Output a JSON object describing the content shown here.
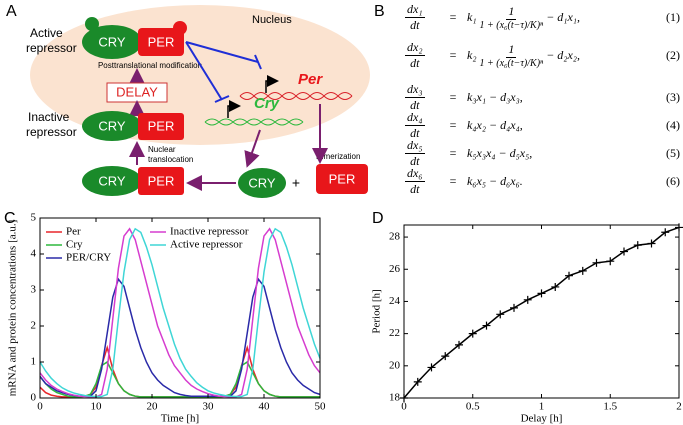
{
  "panel_labels": [
    "A",
    "B",
    "C",
    "D"
  ],
  "diagram": {
    "nucleus": "Nucleus",
    "active_label": [
      "Active",
      "repressor"
    ],
    "inactive_label": [
      "Inactive",
      "repressor"
    ],
    "ptm": "Posttranslational modification",
    "delay": "DELAY",
    "translocation": [
      "Nuclear",
      "translocation"
    ],
    "dimerization": "Dimerization",
    "plus": "+",
    "per_gene": "Per",
    "cry_gene": "Cry",
    "active": {
      "cry": "CRY",
      "per": "PER"
    },
    "inactive": {
      "cry": "CRY",
      "per": "PER"
    },
    "cytoplasm_complex": {
      "cry": "CRY",
      "per": "PER"
    },
    "free_cry": "CRY",
    "free_per": "PER"
  },
  "equations": [
    {
      "num": "dx₁",
      "den": "dt",
      "eq": "=",
      "coef": "k₁",
      "frac_num": "1",
      "frac_den": "1 + (x₆(t−τ)/K)ⁿ",
      "rest": "− d₁x₁,",
      "tag": "(1)"
    },
    {
      "num": "dx₂",
      "den": "dt",
      "eq": "=",
      "coef": "k₂",
      "frac_num": "1",
      "frac_den": "1 + (x₆(t−τ)/K)ⁿ",
      "rest": "− d₂x₂,",
      "tag": "(2)"
    },
    {
      "num": "dx₃",
      "den": "dt",
      "eq": "=",
      "rhs": "k₃x₁ − d₃x₃,",
      "tag": "(3)"
    },
    {
      "num": "dx₄",
      "den": "dt",
      "eq": "=",
      "rhs": "k₄x₂ − d₄x₄,",
      "tag": "(4)"
    },
    {
      "num": "dx₅",
      "den": "dt",
      "eq": "=",
      "rhs": "k₅x₃x₄ − d₅x₅,",
      "tag": "(5)"
    },
    {
      "num": "dx₆",
      "den": "dt",
      "eq": "=",
      "rhs": "k₆x₅ − d₆x₆.",
      "tag": "(6)"
    }
  ],
  "chart_data": [
    {
      "type": "line",
      "x_label": "Time [h]",
      "y_label": "mRNA and protein concentrations [a.u.]",
      "xlim": [
        0,
        50
      ],
      "ylim": [
        0,
        5
      ],
      "xticks": [
        0,
        10,
        20,
        30,
        40,
        50
      ],
      "yticks": [
        0,
        1,
        2,
        3,
        4,
        5
      ],
      "x": [
        0,
        1,
        2,
        3,
        4,
        5,
        6,
        7,
        8,
        9,
        10,
        11,
        12,
        13,
        14,
        15,
        16,
        17,
        18,
        19,
        20,
        21,
        22,
        23,
        24,
        25,
        26,
        27,
        28,
        29,
        30,
        31,
        32,
        33,
        34,
        35,
        36,
        37,
        38,
        39,
        40,
        41,
        42,
        43,
        44,
        45,
        46,
        47,
        48,
        49,
        50
      ],
      "series": [
        {
          "name": "Per",
          "color": "#e8262a",
          "values": [
            0.3,
            0.15,
            0.08,
            0.05,
            0.03,
            0.03,
            0.03,
            0.03,
            0.05,
            0.1,
            0.3,
            0.9,
            1.4,
            0.8,
            0.4,
            0.2,
            0.1,
            0.05,
            0.03,
            0.03,
            0.03,
            0.03,
            0.03,
            0.03,
            0.03,
            0.03,
            0.03,
            0.03,
            0.03,
            0.03,
            0.03,
            0.03,
            0.03,
            0.05,
            0.1,
            0.3,
            0.9,
            1.4,
            0.8,
            0.4,
            0.2,
            0.1,
            0.05,
            0.03,
            0.03,
            0.03,
            0.03,
            0.03,
            0.03,
            0.03,
            0.03
          ]
        },
        {
          "name": "Cry",
          "color": "#2db83d",
          "values": [
            0.6,
            0.4,
            0.25,
            0.15,
            0.1,
            0.05,
            0.03,
            0.03,
            0.05,
            0.1,
            0.4,
            0.9,
            1.0,
            0.7,
            0.4,
            0.2,
            0.1,
            0.05,
            0.03,
            0.03,
            0.03,
            0.03,
            0.03,
            0.03,
            0.03,
            0.03,
            0.03,
            0.03,
            0.03,
            0.03,
            0.03,
            0.03,
            0.03,
            0.05,
            0.1,
            0.4,
            0.9,
            1.0,
            0.7,
            0.4,
            0.2,
            0.1,
            0.05,
            0.03,
            0.03,
            0.03,
            0.03,
            0.03,
            0.03,
            0.03,
            0.03
          ]
        },
        {
          "name": "PER/CRY",
          "color": "#2a2aa8",
          "values": [
            0.6,
            0.4,
            0.3,
            0.2,
            0.15,
            0.1,
            0.07,
            0.05,
            0.05,
            0.05,
            0.2,
            0.8,
            1.8,
            2.8,
            3.3,
            3.1,
            2.5,
            1.9,
            1.4,
            1.0,
            0.7,
            0.5,
            0.35,
            0.25,
            0.15,
            0.1,
            0.07,
            0.05,
            0.05,
            0.05,
            0.05,
            0.05,
            0.05,
            0.05,
            0.05,
            0.2,
            0.8,
            1.8,
            2.8,
            3.3,
            3.1,
            2.5,
            1.9,
            1.4,
            1.0,
            0.7,
            0.5,
            0.35,
            0.25,
            0.15,
            0.1
          ]
        },
        {
          "name": "Inactive repressor",
          "color": "#d63ccf",
          "values": [
            0.7,
            0.5,
            0.35,
            0.25,
            0.18,
            0.12,
            0.08,
            0.05,
            0.04,
            0.03,
            0.03,
            0.1,
            0.8,
            2.2,
            3.6,
            4.5,
            4.7,
            4.4,
            3.8,
            3.2,
            2.6,
            2.0,
            1.6,
            1.2,
            0.9,
            0.7,
            0.5,
            0.35,
            0.25,
            0.18,
            0.12,
            0.08,
            0.05,
            0.04,
            0.03,
            0.03,
            0.1,
            0.8,
            2.2,
            3.6,
            4.5,
            4.7,
            4.4,
            3.8,
            3.2,
            2.6,
            2.0,
            1.6,
            1.2,
            0.9,
            0.7
          ]
        },
        {
          "name": "Active repressor",
          "color": "#3fd6d6",
          "values": [
            1.0,
            0.75,
            0.55,
            0.4,
            0.28,
            0.2,
            0.14,
            0.1,
            0.07,
            0.05,
            0.04,
            0.04,
            0.1,
            0.8,
            2.2,
            3.5,
            4.4,
            4.7,
            4.6,
            4.2,
            3.7,
            3.1,
            2.5,
            2.0,
            1.5,
            1.1,
            0.8,
            0.6,
            0.42,
            0.3,
            0.2,
            0.14,
            0.1,
            0.07,
            0.05,
            0.04,
            0.04,
            0.1,
            0.8,
            2.2,
            3.5,
            4.4,
            4.7,
            4.6,
            4.2,
            3.7,
            3.1,
            2.5,
            2.0,
            1.5,
            1.1
          ]
        }
      ]
    },
    {
      "type": "line",
      "x_label": "Delay [h]",
      "y_label": "Period [h]",
      "marker": "+",
      "color": "#000000",
      "xlim": [
        0,
        2
      ],
      "ylim": [
        18,
        28.75
      ],
      "xticks": [
        0,
        0.5,
        1,
        1.5,
        2
      ],
      "yticks": [
        18,
        20,
        22,
        24,
        26,
        28
      ],
      "x": [
        0,
        0.1,
        0.2,
        0.3,
        0.4,
        0.5,
        0.6,
        0.7,
        0.8,
        0.9,
        1.0,
        1.1,
        1.2,
        1.3,
        1.4,
        1.5,
        1.6,
        1.7,
        1.8,
        1.9,
        2.0
      ],
      "values": [
        18,
        19,
        19.9,
        20.6,
        21.3,
        22.0,
        22.5,
        23.2,
        23.6,
        24.1,
        24.5,
        24.9,
        25.6,
        25.9,
        26.4,
        26.5,
        27.1,
        27.5,
        27.6,
        28.3,
        28.6
      ]
    }
  ]
}
